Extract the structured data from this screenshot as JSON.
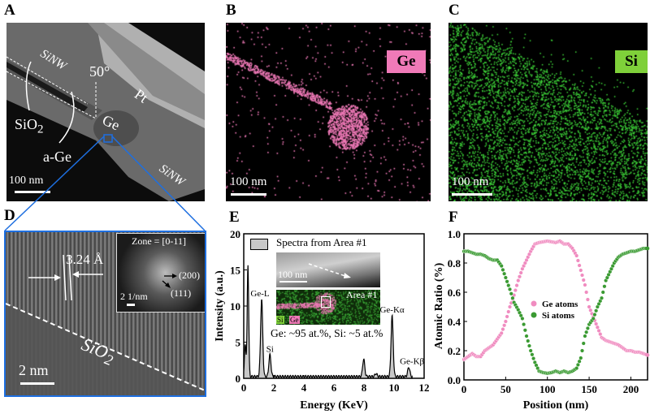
{
  "panels": {
    "A": {
      "label": "A",
      "sinw_top": "SiNW",
      "sinw_bottom": "SiNW",
      "angle": "50°",
      "pt": "Pt",
      "sio2": "SiO",
      "sio2_sub": "2",
      "a_ge": "a-Ge",
      "ge": "Ge",
      "scale": "100 nm"
    },
    "B": {
      "label": "B",
      "element": "Ge",
      "element_color": "#f07ab8",
      "scale": "100 nm"
    },
    "C": {
      "label": "C",
      "element": "Si",
      "element_color": "#7fd03a",
      "scale": "100 nm"
    },
    "D": {
      "label": "D",
      "spacing": "3.24 Å",
      "sio2": "SiO",
      "sio2_sub": "2",
      "scale": "2 nm",
      "inset_zone": "Zone = [0-11]",
      "inset_200": "(200)",
      "inset_111": "(111)",
      "inset_scale": "2 1/nm"
    },
    "E": {
      "label": "E",
      "legend": "Spectra from Area #1",
      "inset_scale": "100 nm",
      "area": "Area #1",
      "map_si": "Si",
      "map_ge": "Ge",
      "composition": "Ge: ~95 at.%, Si: ~5 at.%"
    },
    "F": {
      "label": "F"
    }
  },
  "chart_data": [
    {
      "type": "area",
      "title": "",
      "xlabel": "Energy (KeV)",
      "ylabel": "Intensity (a.u.)",
      "xlim": [
        0,
        12
      ],
      "ylim": [
        0,
        20
      ],
      "xticks": [
        "0",
        "2",
        "4",
        "6",
        "8",
        "10",
        "12"
      ],
      "yticks": [
        "0",
        "5",
        "10",
        "15",
        "20"
      ],
      "legend": "Spectra from Area #1",
      "peaks": [
        {
          "energy": 0.1,
          "intensity": 4.5,
          "label": ""
        },
        {
          "energy": 0.28,
          "intensity": 15.5,
          "label": ""
        },
        {
          "energy": 1.19,
          "intensity": 10.7,
          "label": "Ge-L"
        },
        {
          "energy": 1.74,
          "intensity": 3.0,
          "label": "Si"
        },
        {
          "energy": 7.98,
          "intensity": 2.4,
          "label": ""
        },
        {
          "energy": 8.8,
          "intensity": 0.4,
          "label": ""
        },
        {
          "energy": 9.87,
          "intensity": 8.4,
          "label": "Ge-Kα"
        },
        {
          "energy": 10.98,
          "intensity": 1.3,
          "label": "Ge-Kβ"
        }
      ]
    },
    {
      "type": "scatter",
      "xlabel": "Position (nm)",
      "ylabel": "Atomic Ratio (%)",
      "xlim": [
        0,
        220
      ],
      "ylim": [
        0,
        1.0
      ],
      "xticks": [
        "0",
        "50",
        "100",
        "150",
        "200"
      ],
      "yticks": [
        "0.0",
        "0.2",
        "0.4",
        "0.6",
        "0.8",
        "1.0"
      ],
      "x": [
        0,
        5,
        10,
        15,
        20,
        25,
        30,
        35,
        40,
        45,
        50,
        55,
        60,
        65,
        70,
        75,
        80,
        85,
        90,
        95,
        100,
        105,
        110,
        115,
        120,
        125,
        130,
        135,
        140,
        145,
        150,
        155,
        160,
        165,
        170,
        175,
        180,
        185,
        190,
        195,
        200,
        205,
        210,
        215,
        220
      ],
      "series": [
        {
          "name": "Ge atoms",
          "color": "#f08cc0",
          "values": [
            0.14,
            0.16,
            0.18,
            0.16,
            0.16,
            0.2,
            0.22,
            0.24,
            0.28,
            0.32,
            0.4,
            0.5,
            0.58,
            0.68,
            0.76,
            0.82,
            0.88,
            0.93,
            0.94,
            0.945,
            0.95,
            0.945,
            0.94,
            0.95,
            0.93,
            0.93,
            0.9,
            0.85,
            0.75,
            0.65,
            0.5,
            0.43,
            0.36,
            0.29,
            0.27,
            0.26,
            0.25,
            0.24,
            0.22,
            0.2,
            0.2,
            0.19,
            0.19,
            0.18,
            0.17
          ]
        },
        {
          "name": "Si atoms",
          "color": "#3a9a32",
          "values": [
            0.88,
            0.88,
            0.87,
            0.86,
            0.86,
            0.85,
            0.83,
            0.82,
            0.82,
            0.78,
            0.7,
            0.62,
            0.53,
            0.48,
            0.42,
            0.3,
            0.2,
            0.12,
            0.06,
            0.05,
            0.045,
            0.05,
            0.06,
            0.05,
            0.06,
            0.05,
            0.06,
            0.08,
            0.15,
            0.3,
            0.38,
            0.42,
            0.5,
            0.56,
            0.68,
            0.74,
            0.8,
            0.84,
            0.86,
            0.87,
            0.88,
            0.88,
            0.89,
            0.9,
            0.9
          ]
        }
      ],
      "legend_position": "center"
    }
  ]
}
